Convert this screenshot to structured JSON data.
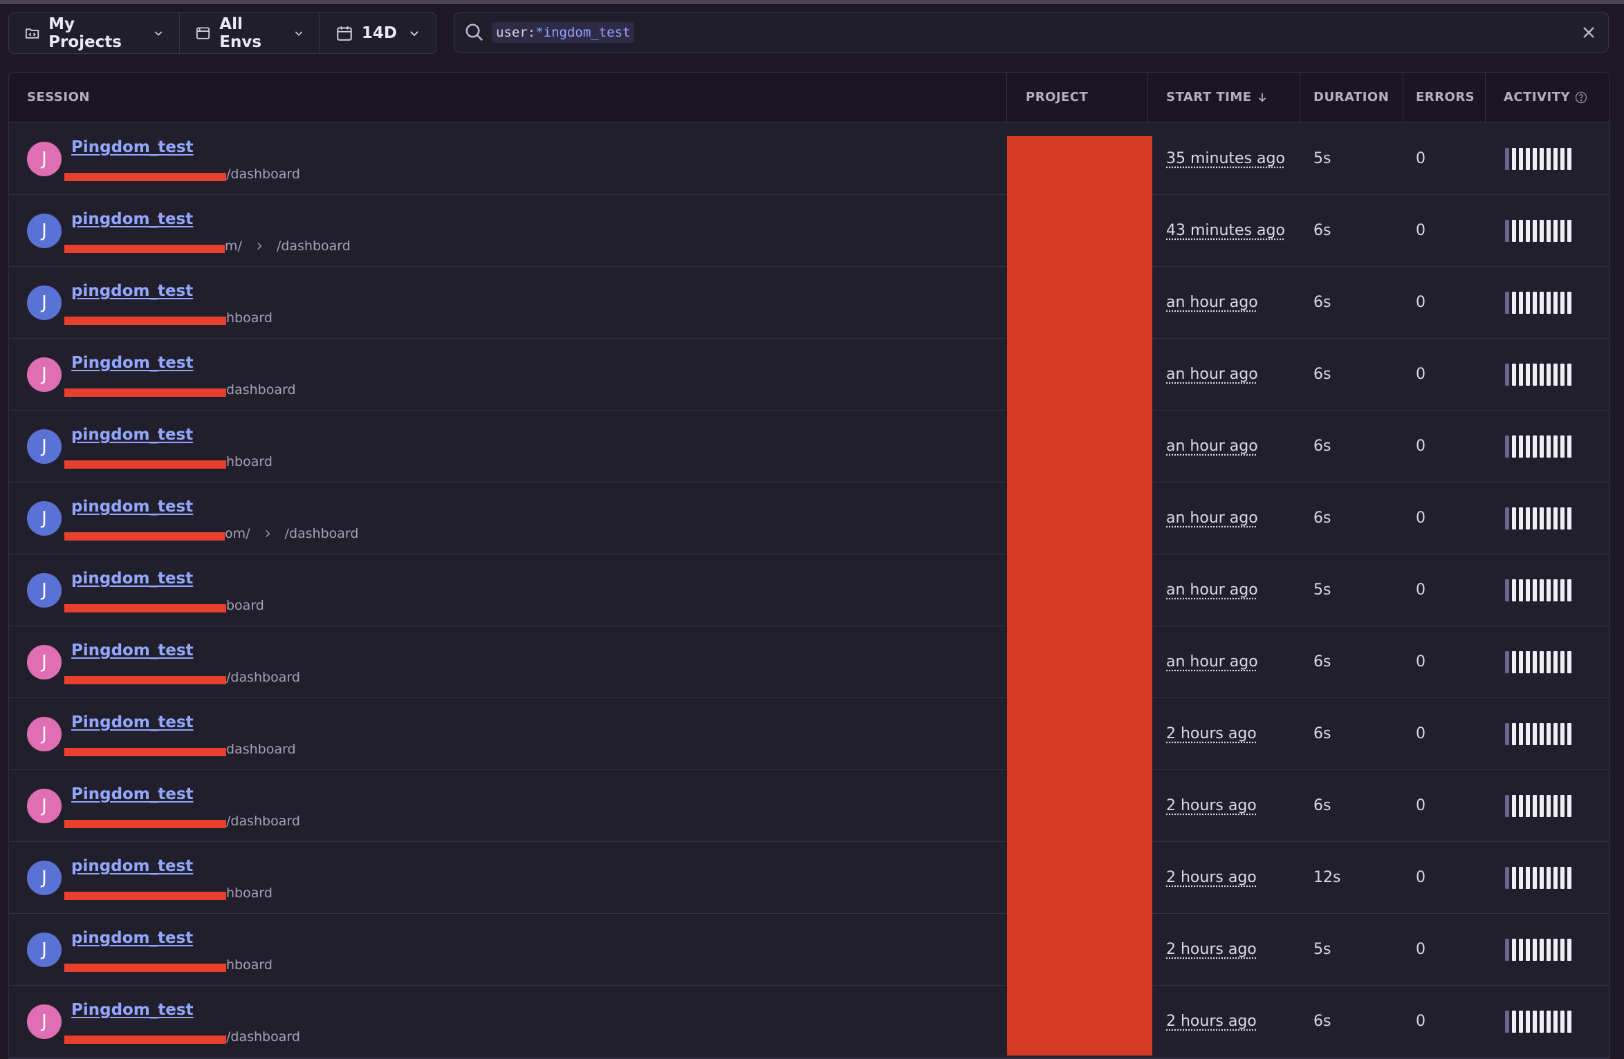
{
  "toolbar": {
    "project_filter": "My Projects",
    "env_filter": "All Envs",
    "date_filter": "14D"
  },
  "search": {
    "token_key": "user:",
    "token_value": "*ingdom_test"
  },
  "table": {
    "headers": {
      "session": "SESSION",
      "project": "PROJECT",
      "start_time": "START TIME",
      "duration": "DURATION",
      "errors": "ERRORS",
      "activity": "ACTIVITY"
    },
    "rows": [
      {
        "initial": "J",
        "avatar": "pink",
        "name": "Pingdom_test",
        "url_prefix": "",
        "url_path": "/dashboard",
        "start": "35 minutes ago",
        "duration": "5s",
        "errors": "0"
      },
      {
        "initial": "J",
        "avatar": "blue",
        "name": "pingdom_test",
        "url_prefix": "m/",
        "url_path": "/dashboard",
        "start": "43 minutes ago",
        "duration": "6s",
        "errors": "0"
      },
      {
        "initial": "J",
        "avatar": "blue",
        "name": "pingdom_test",
        "url_prefix": "",
        "url_path": "hboard",
        "start": "an hour ago",
        "duration": "6s",
        "errors": "0"
      },
      {
        "initial": "J",
        "avatar": "pink",
        "name": "Pingdom_test",
        "url_prefix": "",
        "url_path": "dashboard",
        "start": "an hour ago",
        "duration": "6s",
        "errors": "0"
      },
      {
        "initial": "J",
        "avatar": "blue",
        "name": "pingdom_test",
        "url_prefix": "",
        "url_path": "hboard",
        "start": "an hour ago",
        "duration": "6s",
        "errors": "0"
      },
      {
        "initial": "J",
        "avatar": "blue",
        "name": "pingdom_test",
        "url_prefix": "om/",
        "url_path": "/dashboard",
        "start": "an hour ago",
        "duration": "6s",
        "errors": "0"
      },
      {
        "initial": "J",
        "avatar": "blue",
        "name": "pingdom_test",
        "url_prefix": "",
        "url_path": "board",
        "start": "an hour ago",
        "duration": "5s",
        "errors": "0"
      },
      {
        "initial": "J",
        "avatar": "pink",
        "name": "Pingdom_test",
        "url_prefix": "",
        "url_path": "/dashboard",
        "start": "an hour ago",
        "duration": "6s",
        "errors": "0"
      },
      {
        "initial": "J",
        "avatar": "pink",
        "name": "Pingdom_test",
        "url_prefix": "",
        "url_path": "dashboard",
        "start": "2 hours ago",
        "duration": "6s",
        "errors": "0"
      },
      {
        "initial": "J",
        "avatar": "pink",
        "name": "Pingdom_test",
        "url_prefix": "",
        "url_path": "/dashboard",
        "start": "2 hours ago",
        "duration": "6s",
        "errors": "0"
      },
      {
        "initial": "J",
        "avatar": "blue",
        "name": "pingdom_test",
        "url_prefix": "",
        "url_path": "hboard",
        "start": "2 hours ago",
        "duration": "12s",
        "errors": "0"
      },
      {
        "initial": "J",
        "avatar": "blue",
        "name": "pingdom_test",
        "url_prefix": "",
        "url_path": "hboard",
        "start": "2 hours ago",
        "duration": "5s",
        "errors": "0"
      },
      {
        "initial": "J",
        "avatar": "pink",
        "name": "Pingdom_test",
        "url_prefix": "",
        "url_path": "/dashboard",
        "start": "2 hours ago",
        "duration": "6s",
        "errors": "0"
      }
    ]
  }
}
